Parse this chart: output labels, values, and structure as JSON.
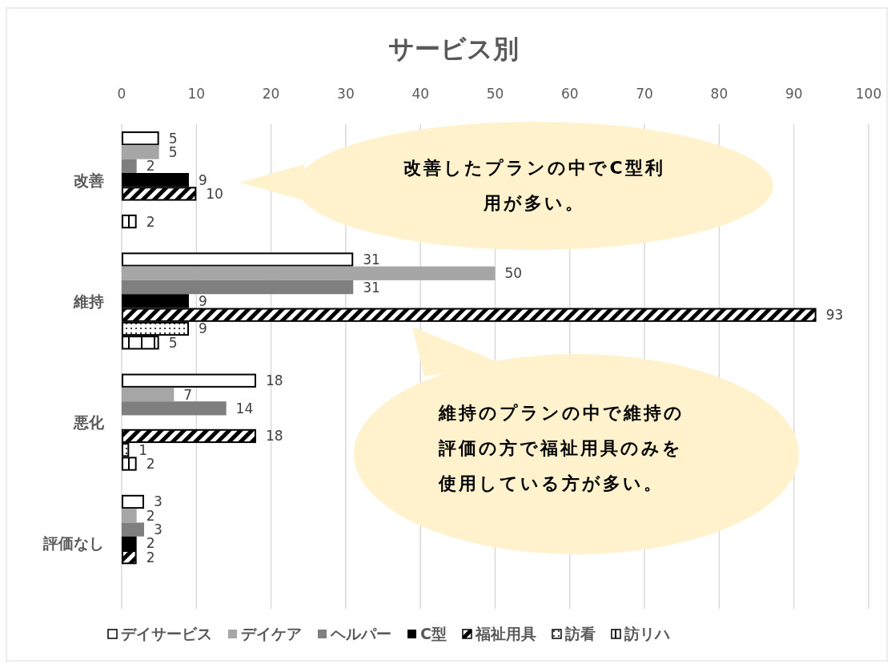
{
  "chart_data": {
    "type": "bar",
    "orientation": "horizontal",
    "title": "サービス別",
    "categories": [
      "改善",
      "維持",
      "悪化",
      "評価なし"
    ],
    "series": [
      {
        "name": "デイサービス",
        "color": "#ffffff",
        "values": [
          5,
          31,
          18,
          3
        ]
      },
      {
        "name": "デイケア",
        "color": "#a6a6a6",
        "values": [
          5,
          50,
          7,
          2
        ]
      },
      {
        "name": "ヘルパー",
        "color": "#7f7f7f",
        "values": [
          2,
          31,
          14,
          3
        ]
      },
      {
        "name": "C型",
        "color": "#000000",
        "values": [
          9,
          9,
          null,
          2
        ]
      },
      {
        "name": "福祉用具",
        "color": "#000000",
        "values": [
          10,
          93,
          18,
          2
        ]
      },
      {
        "name": "訪看",
        "color": "#000000",
        "values": [
          null,
          9,
          1,
          null
        ]
      },
      {
        "name": "訪リハ",
        "color": "#000000",
        "values": [
          2,
          5,
          2,
          null
        ]
      }
    ],
    "xlim": [
      0,
      100
    ],
    "xticks": [
      0,
      10,
      20,
      30,
      40,
      50,
      60,
      70,
      80,
      90,
      100
    ],
    "grid": "x",
    "legend": "bottom",
    "data_labels": true,
    "annotations": [
      "改善したプランの中でC型利用が多い。",
      "維持のプランの中で維持の評価の方で福祉用具のみを使用している方が多い。"
    ]
  }
}
